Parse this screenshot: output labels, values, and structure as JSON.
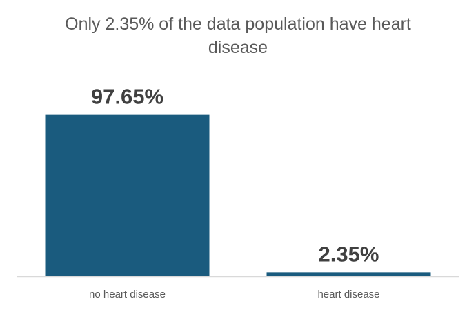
{
  "chart_data": {
    "type": "bar",
    "title": "Only 2.35% of the data population have heart disease",
    "categories": [
      "no heart disease",
      "heart disease"
    ],
    "values": [
      97.65,
      2.35
    ],
    "data_labels": [
      "97.65%",
      "2.35%"
    ],
    "ylim": [
      0,
      100
    ],
    "bar_color": "#1a5b7e",
    "axis_color": "#d9d9d9",
    "grid": false,
    "legend": "none"
  }
}
